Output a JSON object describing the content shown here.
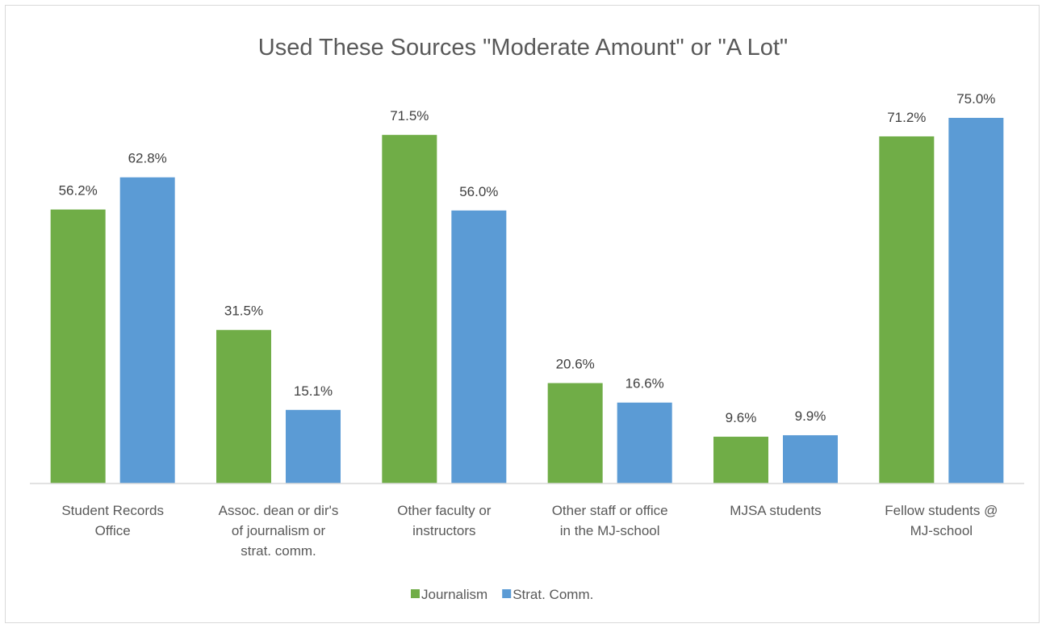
{
  "chart_data": {
    "type": "bar",
    "title": "Used These Sources \"Moderate Amount\" or \"A Lot\"",
    "xlabel": "",
    "ylabel": "",
    "ylim": [
      0,
      80
    ],
    "grid": false,
    "legend_position": "bottom",
    "categories": [
      [
        "Student Records",
        "Office"
      ],
      [
        "Assoc. dean or dir's",
        "of journalism or",
        "strat. comm."
      ],
      [
        "Other faculty or",
        "instructors"
      ],
      [
        "Other staff or office",
        "in the MJ-school"
      ],
      [
        "MJSA students"
      ],
      [
        "Fellow students @",
        "MJ-school"
      ]
    ],
    "series": [
      {
        "name": "Journalism",
        "color": "#70ad47",
        "values": [
          56.2,
          31.5,
          71.5,
          20.6,
          9.6,
          71.2
        ],
        "labels": [
          "56.2%",
          "31.5%",
          "71.5%",
          "20.6%",
          "9.6%",
          "71.2%"
        ]
      },
      {
        "name": "Strat. Comm.",
        "color": "#5b9bd5",
        "values": [
          62.8,
          15.1,
          56.0,
          16.6,
          9.9,
          75.0
        ],
        "labels": [
          "62.8%",
          "15.1%",
          "56.0%",
          "16.6%",
          "9.9%",
          "75.0%"
        ]
      }
    ]
  }
}
